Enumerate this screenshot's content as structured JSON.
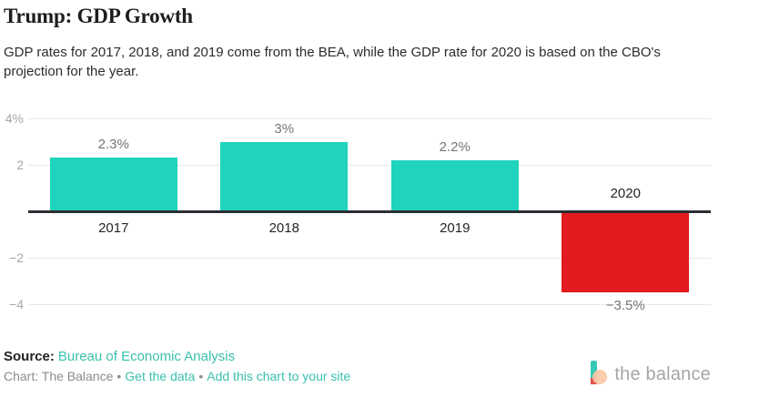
{
  "header": {
    "title": "Trump: GDP Growth",
    "subtitle": "GDP rates for 2017, 2018, and 2019 come from the BEA, while the GDP rate for 2020 is based on the CBO's projection for the year."
  },
  "chart_data": {
    "type": "bar",
    "title": "Trump: GDP Growth",
    "categories": [
      "2017",
      "2018",
      "2019",
      "2020"
    ],
    "values": [
      2.3,
      3,
      2.2,
      -3.5
    ],
    "value_labels": [
      "2.3%",
      "3%",
      "2.2%",
      "−3.5%"
    ],
    "bar_colors": [
      "#1fd3bd",
      "#1fd3bd",
      "#1fd3bd",
      "#e11b1e"
    ],
    "y_ticks": [
      {
        "value": 4,
        "label": "4%"
      },
      {
        "value": 2,
        "label": "2"
      },
      {
        "value": -2,
        "label": "−2"
      },
      {
        "value": -4,
        "label": "−4"
      }
    ],
    "ylim": [
      -4.7,
      4.6
    ],
    "grid": true,
    "xlabel": "",
    "ylabel": ""
  },
  "footer": {
    "source_label": "Source:",
    "source_link": "Bureau of Economic Analysis",
    "credit_text": "Chart: The Balance",
    "separator": "•",
    "get_data_label": "Get the data",
    "add_chart_label": "Add this chart to your site"
  },
  "branding": {
    "logo_text": "the balance"
  },
  "colors": {
    "positive_bar": "#1fd3bd",
    "negative_bar": "#e11b1e",
    "link": "#3bc0ad",
    "gridline": "#e8e8e8",
    "zero_line": "#2b2e33",
    "tick_label": "#a6a6a6",
    "value_label": "#757575",
    "category_label": "#262626"
  }
}
